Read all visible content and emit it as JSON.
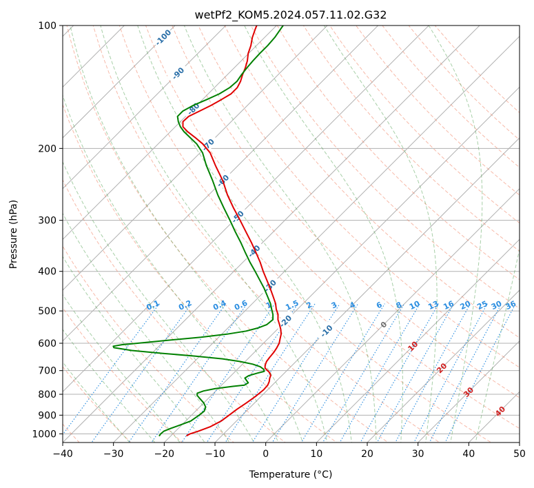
{
  "chart_data": {
    "type": "line",
    "title": "wetPf2_KOM5.2024.057.11.02.G32",
    "xlabel": "Temperature (°C)",
    "ylabel": "Pressure (hPa)",
    "xlim": [
      -40,
      50
    ],
    "ylim": [
      1050,
      100
    ],
    "y_scale": "log",
    "grid": true,
    "x_ticks": [
      "−40",
      "−30",
      "−20",
      "−10",
      "0",
      "10",
      "20",
      "30",
      "40",
      "50"
    ],
    "y_ticks": [
      "100",
      "200",
      "300",
      "400",
      "500",
      "600",
      "700",
      "800",
      "900",
      "1000"
    ],
    "series": [
      {
        "color": "#e00000",
        "pressure": [
          1010,
          1000,
          985,
          960,
          930,
          900,
          870,
          840,
          810,
          780,
          760,
          745,
          730,
          720,
          708,
          700,
          690,
          680,
          665,
          650,
          630,
          615,
          600,
          585,
          570,
          555,
          540,
          525,
          510,
          495,
          480,
          460,
          440,
          420,
          400,
          380,
          360,
          340,
          320,
          300,
          280,
          260,
          240,
          220,
          205,
          195,
          188,
          182,
          177,
          172,
          167,
          162,
          157,
          152,
          147,
          142,
          137,
          132,
          127,
          122,
          117,
          112,
          107,
          102,
          100
        ],
        "temperature": [
          -16.9,
          -16.6,
          -15.5,
          -14.0,
          -13.0,
          -12.6,
          -12.2,
          -11.6,
          -11.1,
          -10.8,
          -10.9,
          -11.3,
          -11.9,
          -12.2,
          -13.0,
          -13.8,
          -14.8,
          -15.3,
          -15.8,
          -16.0,
          -16.2,
          -16.5,
          -16.9,
          -17.6,
          -18.3,
          -19.3,
          -20.5,
          -21.8,
          -22.8,
          -24.2,
          -25.4,
          -27.4,
          -29.5,
          -31.8,
          -34.2,
          -36.6,
          -39.3,
          -42.2,
          -45.4,
          -48.8,
          -52.5,
          -56.3,
          -60.0,
          -64.5,
          -68.0,
          -71.2,
          -74.0,
          -76.6,
          -78.5,
          -79.5,
          -79.4,
          -78.3,
          -77.2,
          -76.3,
          -75.5,
          -75.5,
          -76.1,
          -77.0,
          -77.8,
          -78.8,
          -80.1,
          -81.1,
          -82.4,
          -83.5,
          -83.9
        ]
      },
      {
        "color": "#008000",
        "pressure": [
          1010,
          1000,
          985,
          970,
          950,
          930,
          900,
          880,
          860,
          840,
          820,
          805,
          795,
          785,
          775,
          765,
          760,
          750,
          740,
          730,
          720,
          710,
          703,
          695,
          685,
          675,
          665,
          655,
          645,
          635,
          625,
          615,
          610,
          605,
          600,
          590,
          580,
          570,
          560,
          550,
          540,
          525,
          510,
          495,
          480,
          460,
          440,
          420,
          400,
          380,
          360,
          340,
          320,
          300,
          280,
          260,
          240,
          220,
          205,
          195,
          188,
          182,
          177,
          172,
          167,
          162,
          157,
          152,
          147,
          142,
          137,
          132,
          127,
          122,
          117,
          112,
          107,
          102,
          100
        ],
        "temperature": [
          -22.3,
          -22.4,
          -22.3,
          -21.5,
          -20.2,
          -19.0,
          -18.5,
          -18.3,
          -18.8,
          -20.0,
          -21.6,
          -22.8,
          -23.2,
          -22.4,
          -20.6,
          -17.5,
          -15.5,
          -15.2,
          -16.0,
          -16.8,
          -16.5,
          -15.3,
          -14.3,
          -14.8,
          -16.0,
          -18.0,
          -21.0,
          -25.0,
          -31.0,
          -38.0,
          -44.5,
          -48.6,
          -49.0,
          -47.6,
          -44.8,
          -39.5,
          -33.5,
          -29.0,
          -25.8,
          -24.0,
          -23.0,
          -22.8,
          -23.8,
          -25.1,
          -26.4,
          -28.5,
          -30.7,
          -33.2,
          -35.8,
          -38.6,
          -41.4,
          -44.3,
          -47.5,
          -50.8,
          -54.4,
          -58.2,
          -62.0,
          -66.3,
          -69.5,
          -72.4,
          -75.0,
          -77.3,
          -79.0,
          -80.4,
          -81.6,
          -81.6,
          -80.7,
          -79.2,
          -77.8,
          -77.0,
          -76.8,
          -77.2,
          -77.5,
          -77.7,
          -77.8,
          -77.8,
          -78.0,
          -78.5,
          -78.7
        ]
      }
    ],
    "skew_labels": [
      "-100",
      "-90",
      "-80",
      "-70",
      "-60",
      "-50",
      "-40",
      "-30",
      "-20",
      "-10"
    ],
    "mixing_ratio_labels": [
      "0.1",
      "0.2",
      "0.4",
      "0.6",
      "1",
      "1.5",
      "2",
      "3",
      "4",
      "6",
      "8",
      "10",
      "13",
      "16",
      "20",
      "25",
      "30",
      "36"
    ],
    "moist_adiabat_labels": [
      "0",
      "10",
      "20",
      "30",
      "40"
    ],
    "colors": {
      "isotherm": "#b0b0b0",
      "dry_adiabat": "#f08060",
      "moist_adiabat": "#50a050",
      "mixing_ratio": "#3090e0",
      "label_isotherm": "#2a6fa8",
      "label_mixing": "#2a8de0",
      "label_moist_warm": "#d02020",
      "label_moist_zero": "#707070"
    }
  }
}
